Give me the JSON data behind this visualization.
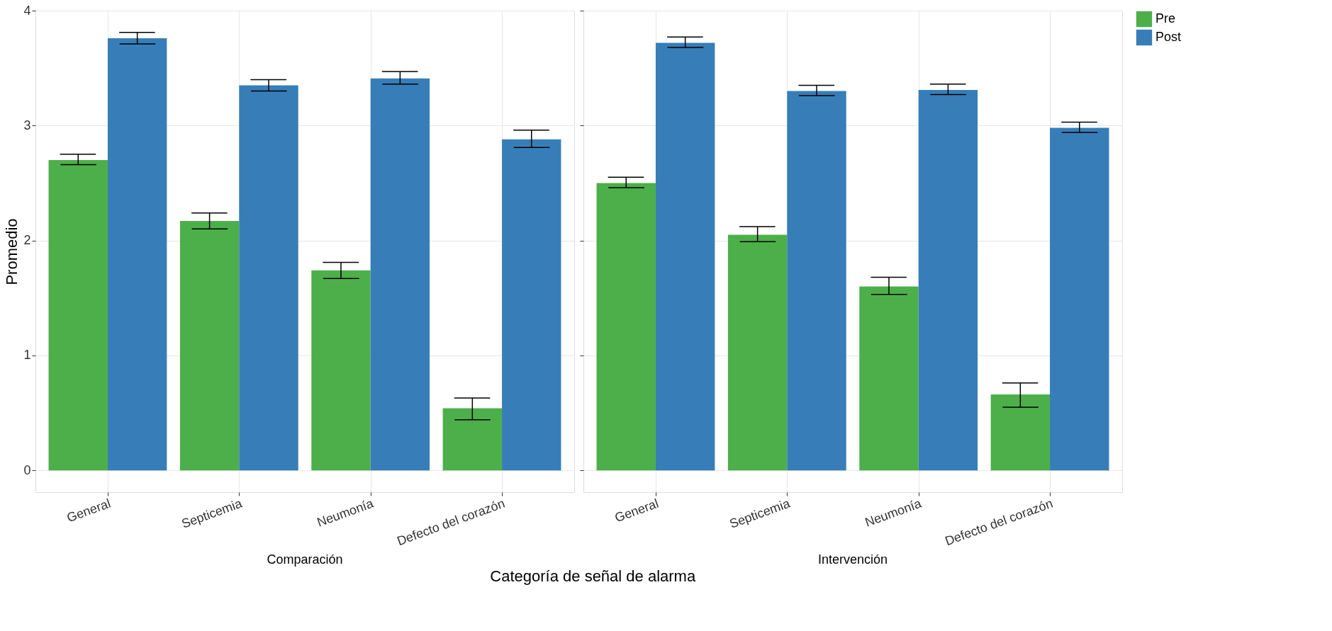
{
  "chart_data": [
    {
      "type": "bar",
      "title": "Comparación",
      "xlabel": "Categoría de señal de alarma",
      "ylabel": "Promedio",
      "categories": [
        "General",
        "Septicemia",
        "Neumonía",
        "Defecto del corazón"
      ],
      "series": [
        {
          "name": "Pre",
          "color": "#4daf4a",
          "values": [
            2.7,
            2.17,
            1.74,
            0.54
          ],
          "errors": [
            [
              2.66,
              2.75
            ],
            [
              2.1,
              2.24
            ],
            [
              1.67,
              1.81
            ],
            [
              0.44,
              0.63
            ]
          ]
        },
        {
          "name": "Post",
          "color": "#377eb8",
          "values": [
            3.76,
            3.35,
            3.41,
            2.88
          ],
          "errors": [
            [
              3.71,
              3.81
            ],
            [
              3.3,
              3.4
            ],
            [
              3.36,
              3.47
            ],
            [
              2.81,
              2.96
            ]
          ]
        }
      ],
      "ylim": [
        -0.19,
        4.0
      ],
      "yticks": [
        0,
        1,
        2,
        3,
        4
      ],
      "grid": true,
      "legend": "right"
    },
    {
      "type": "bar",
      "title": "Intervención",
      "categories": [
        "General",
        "Septicemia",
        "Neumonía",
        "Defecto del corazón"
      ],
      "series": [
        {
          "name": "Pre",
          "color": "#4daf4a",
          "values": [
            2.5,
            2.05,
            1.6,
            0.66
          ],
          "errors": [
            [
              2.46,
              2.55
            ],
            [
              1.99,
              2.12
            ],
            [
              1.53,
              1.68
            ],
            [
              0.55,
              0.76
            ]
          ]
        },
        {
          "name": "Post",
          "color": "#377eb8",
          "values": [
            3.72,
            3.3,
            3.31,
            2.98
          ],
          "errors": [
            [
              3.68,
              3.77
            ],
            [
              3.26,
              3.35
            ],
            [
              3.27,
              3.36
            ],
            [
              2.94,
              3.03
            ]
          ]
        }
      ],
      "ylim": [
        -0.19,
        4.0
      ],
      "yticks": [
        0,
        1,
        2,
        3,
        4
      ],
      "grid": true,
      "legend": "right",
      "tick_labels": "x"
    }
  ]
}
